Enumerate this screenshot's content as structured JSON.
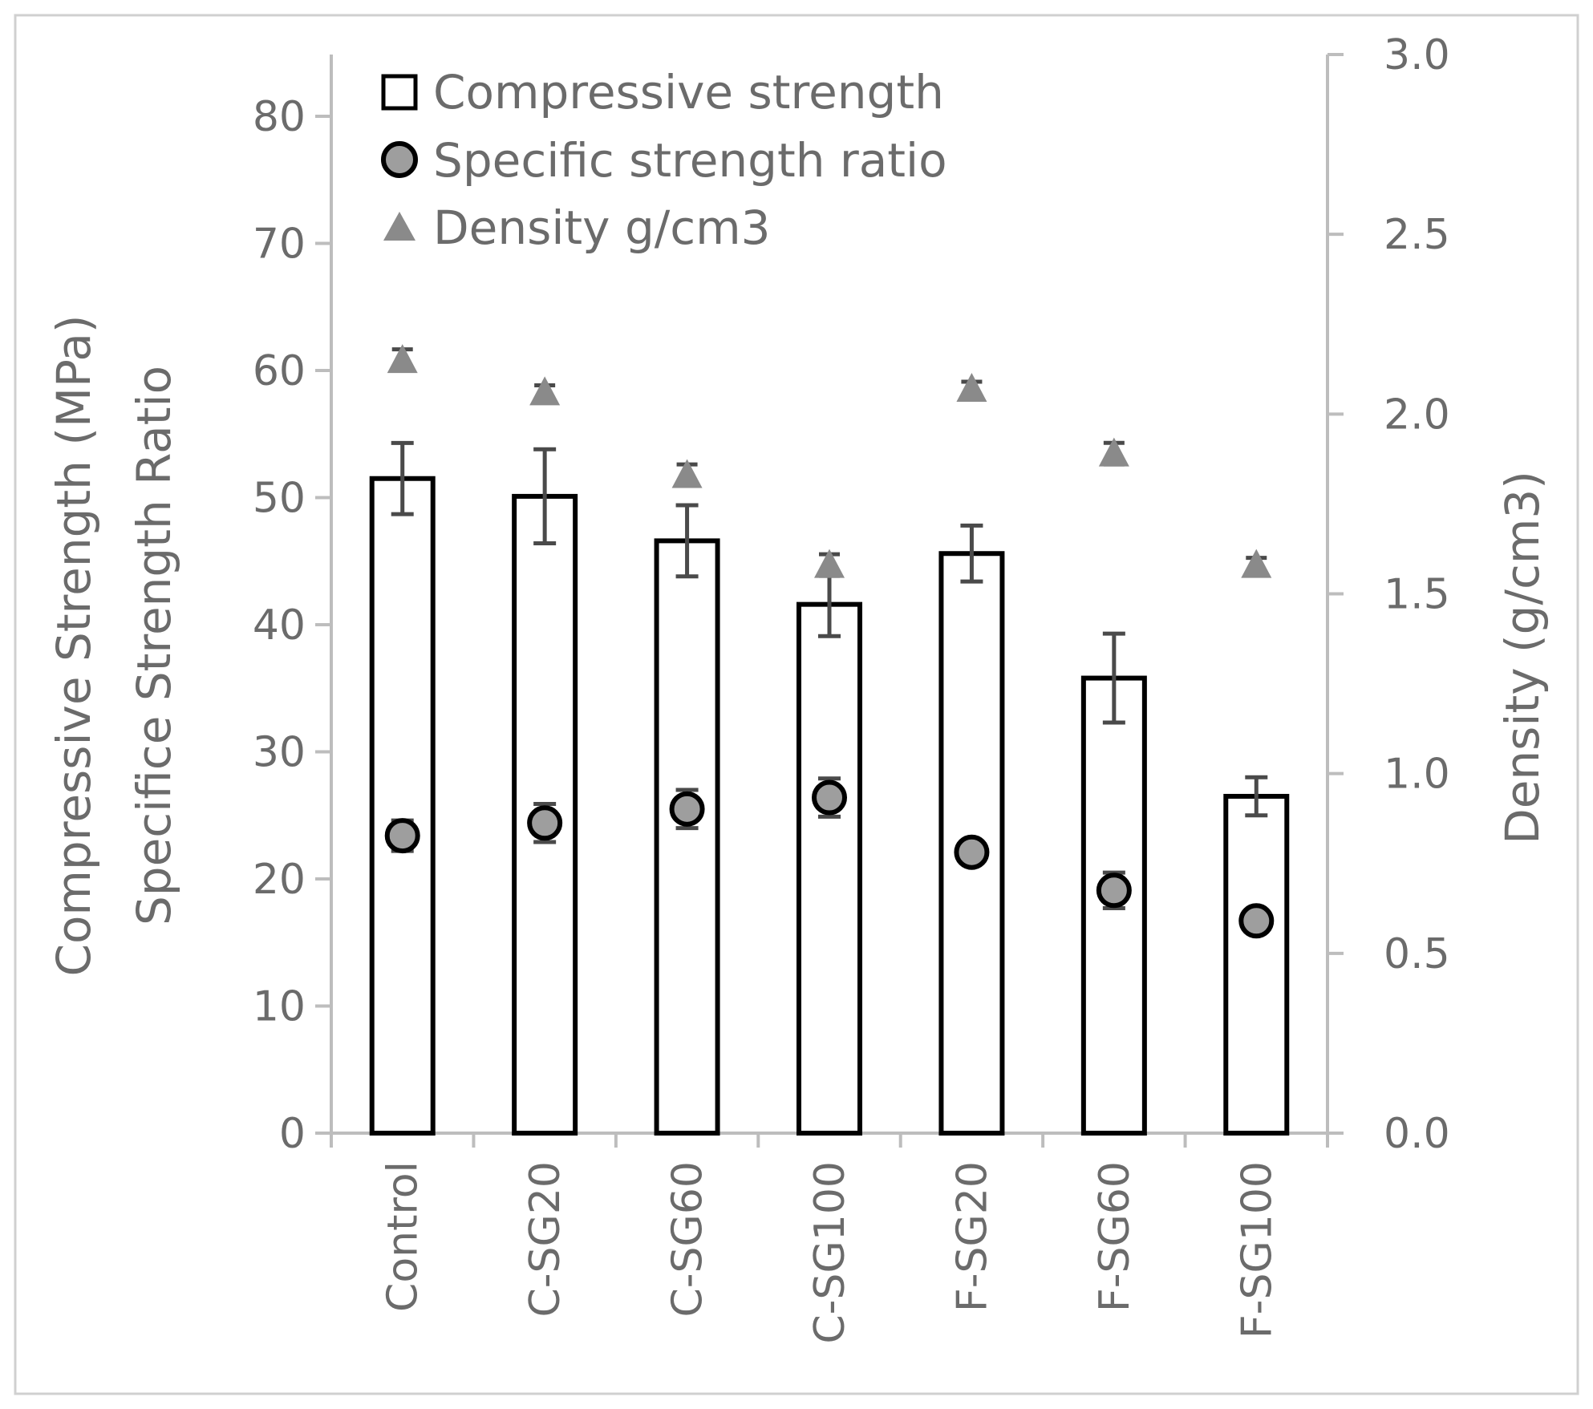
{
  "chart_data": {
    "type": "bar",
    "categories": [
      "Control",
      "C-SG20",
      "C-SG60",
      "C-SG100",
      "F-SG20",
      "F-SG60",
      "F-SG100"
    ],
    "series": [
      {
        "name": "Compressive strength",
        "axis": "left",
        "kind": "bar",
        "values": [
          51.5,
          50.1,
          46.6,
          41.6,
          45.6,
          35.8,
          26.5
        ],
        "errors": [
          2.8,
          3.7,
          2.8,
          2.5,
          2.2,
          3.5,
          1.5
        ]
      },
      {
        "name": "Specific strength ratio",
        "axis": "left",
        "kind": "scatter-circle",
        "values": [
          23.4,
          24.4,
          25.5,
          26.4,
          22.1,
          19.1,
          16.7
        ],
        "errors": [
          1.2,
          1.5,
          1.5,
          1.5,
          0.6,
          1.4,
          0.6
        ]
      },
      {
        "name": "Density g/cm3",
        "axis": "right",
        "kind": "scatter-triangle",
        "values": [
          2.15,
          2.06,
          1.83,
          1.58,
          2.07,
          1.89,
          1.58
        ],
        "errors": [
          0.03,
          0.02,
          0.03,
          0.03,
          0.02,
          0.03,
          0.02
        ]
      }
    ],
    "yaxis_left": {
      "title_line1": "Compressive Strength (MPa)",
      "title_line2": "Specifice Strength Ratio",
      "ylim": [
        0,
        85
      ],
      "ticks": [
        0,
        10,
        20,
        30,
        40,
        50,
        60,
        70,
        80
      ],
      "tick_labels": [
        "0",
        "10",
        "20",
        "30",
        "40",
        "50",
        "60",
        "70",
        "80"
      ]
    },
    "yaxis_right": {
      "title": "Density (g/cm3)",
      "ylim": [
        0,
        3.0
      ],
      "ticks": [
        0,
        0.5,
        1.0,
        1.5,
        2.0,
        2.5,
        3.0
      ],
      "tick_labels": [
        "0.0",
        "0.5",
        "1.0",
        "1.5",
        "2.0",
        "2.5",
        "3.0"
      ]
    },
    "legend": {
      "placement": "top-left",
      "entries": [
        "Compressive strength",
        "Specific strength ratio",
        "Density g/cm3"
      ]
    },
    "grid": false
  },
  "colors": {
    "axis": "#bdbdbd",
    "text": "#6b6b6b",
    "bar_fill": "#ffffff",
    "bar_stroke": "#000000",
    "circle_fill": "#9e9e9e",
    "circle_stroke": "#000000",
    "triangle_fill": "#8a8a8a",
    "error_bar": "#4a4a4a"
  }
}
